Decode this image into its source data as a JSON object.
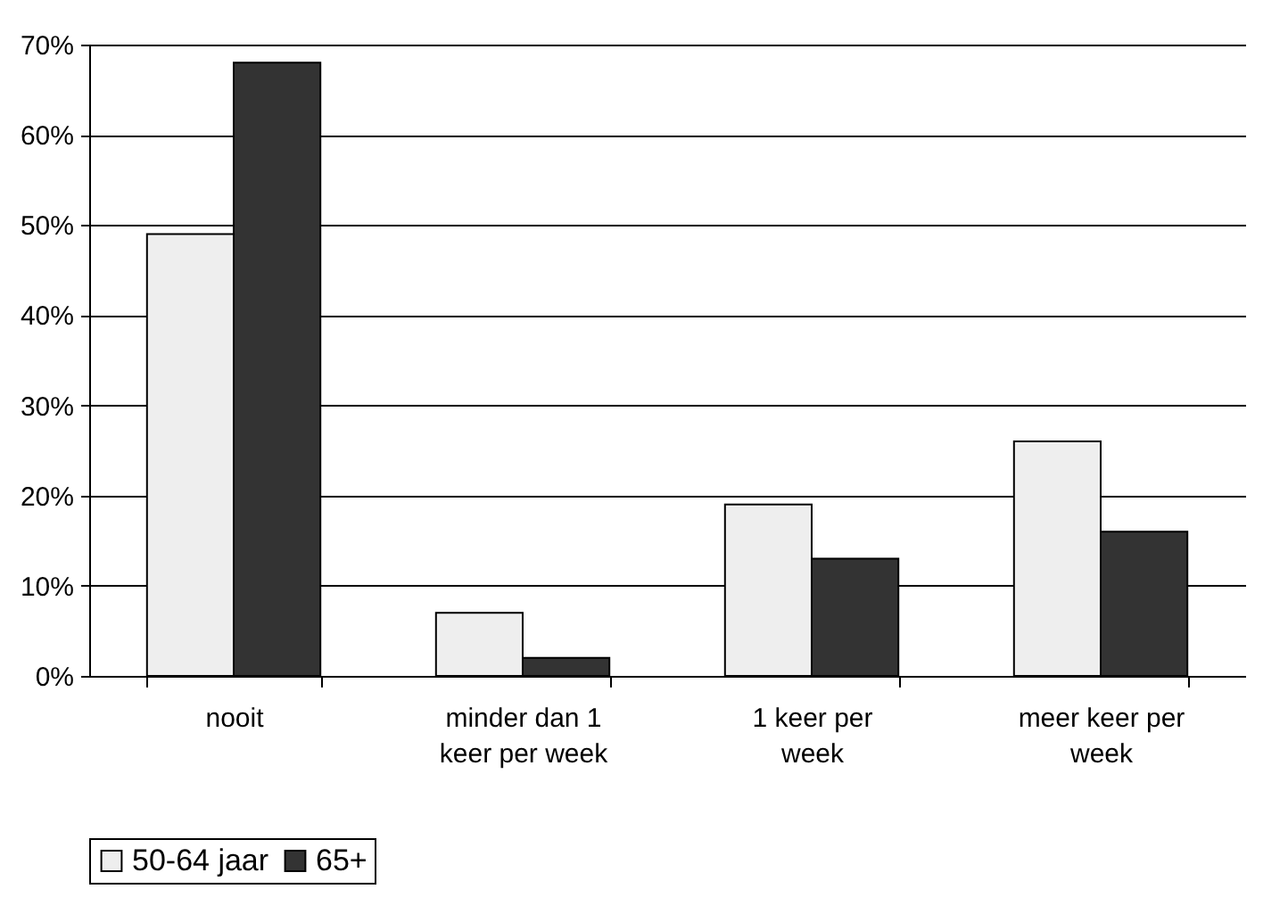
{
  "chart_data": {
    "type": "bar",
    "categories": [
      "nooit",
      "minder dan 1 keer per week",
      "1 keer per week",
      "meer keer per week"
    ],
    "series": [
      {
        "name": "50-64 jaar",
        "color": "#eeeeee",
        "values": [
          49,
          7,
          19,
          26
        ]
      },
      {
        "name": "65+",
        "color": "#333333",
        "values": [
          68,
          2,
          13,
          16
        ]
      }
    ],
    "ylim": [
      0,
      70
    ],
    "yticks": [
      {
        "value": 0,
        "label": "0%"
      },
      {
        "value": 10,
        "label": "10%"
      },
      {
        "value": 20,
        "label": "20%"
      },
      {
        "value": 30,
        "label": "30%"
      },
      {
        "value": 40,
        "label": "40%"
      },
      {
        "value": 50,
        "label": "50%"
      },
      {
        "value": 60,
        "label": "60%"
      },
      {
        "value": 70,
        "label": "70%"
      }
    ],
    "grid": "y",
    "legend": "bottom"
  }
}
